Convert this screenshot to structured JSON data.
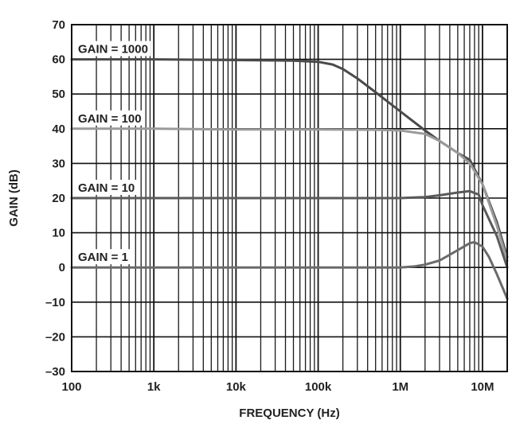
{
  "chart_data": {
    "type": "line",
    "xlabel": "FREQUENCY (Hz)",
    "ylabel": "GAIN (dB)",
    "xscale": "log",
    "xlim": [
      100,
      20000000
    ],
    "ylim": [
      -30,
      70
    ],
    "grid": true,
    "x_tick_values": [
      100,
      1000,
      10000,
      100000,
      1000000,
      10000000
    ],
    "x_tick_labels": [
      "100",
      "1k",
      "10k",
      "100k",
      "1M",
      "10M"
    ],
    "y_ticks": [
      70,
      60,
      50,
      40,
      30,
      20,
      10,
      0,
      -10,
      -20,
      -30
    ],
    "y_tick_labels": [
      "70",
      "60",
      "50",
      "40",
      "30",
      "20",
      "10",
      "0",
      "–10",
      "–20",
      "–30"
    ],
    "series": [
      {
        "name": "GAIN = 1000",
        "color": "#4a4a4a",
        "x": [
          100,
          1000,
          10000,
          50000,
          100000,
          150000,
          200000,
          300000,
          500000,
          1000000,
          2000000,
          3000000,
          5000000,
          7000000,
          10000000,
          15000000,
          20000000
        ],
        "y": [
          60,
          60,
          59.8,
          59.6,
          59.3,
          58.5,
          57.2,
          54.5,
          50.5,
          45,
          39.5,
          36.5,
          33,
          31,
          24,
          13,
          3
        ]
      },
      {
        "name": "GAIN = 100",
        "color": "#9a9a9a",
        "x": [
          100,
          1000,
          10000,
          100000,
          500000,
          1000000,
          2000000,
          3000000,
          5000000,
          7000000,
          10000000,
          15000000,
          20000000
        ],
        "y": [
          40,
          40,
          39.8,
          39.8,
          39.7,
          39.5,
          38.5,
          36.5,
          33,
          30,
          24,
          12,
          2
        ]
      },
      {
        "name": "GAIN = 10",
        "color": "#5a5a5a",
        "x": [
          100,
          1000,
          10000,
          100000,
          1000000,
          2000000,
          3000000,
          5000000,
          7000000,
          9000000,
          10000000,
          15000000,
          20000000
        ],
        "y": [
          20,
          20,
          20,
          20,
          20,
          20.3,
          20.8,
          21.6,
          22,
          21,
          18,
          9,
          0
        ]
      },
      {
        "name": "GAIN = 1",
        "color": "#6a6a6a",
        "x": [
          100,
          1000,
          10000,
          100000,
          1000000,
          1500000,
          2000000,
          3000000,
          5000000,
          7000000,
          8000000,
          10000000,
          12000000,
          15000000,
          20000000
        ],
        "y": [
          0,
          0,
          0,
          0,
          0,
          0.3,
          0.8,
          2,
          5,
          7,
          7.3,
          6,
          3,
          -2,
          -9
        ]
      }
    ]
  }
}
